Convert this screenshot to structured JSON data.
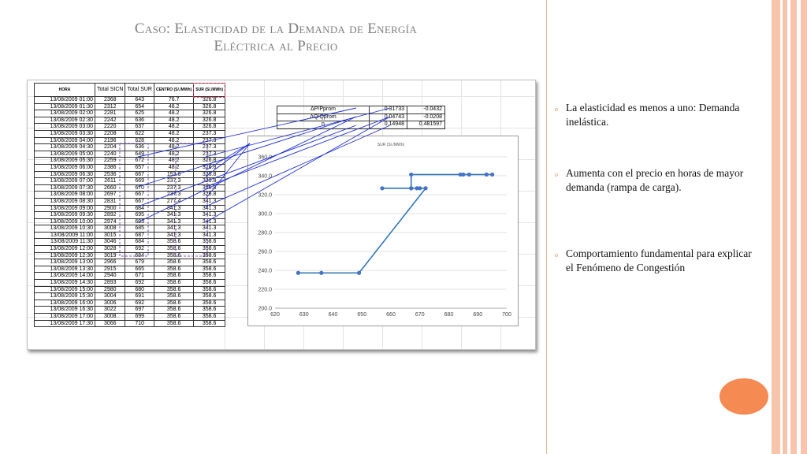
{
  "slide": {
    "title_line1": "Caso: Elasticidad de la Demanda de Energía",
    "title_line2": "Eléctrica al Precio",
    "bullets": [
      "La elasticidad es menos a uno: Demanda inelástica.",
      "Aumenta con el precio en horas de mayor demanda (rampa de carga).",
      "Comportamiento fundamental para explicar el Fenómeno de Congestión"
    ],
    "colors": {
      "accent_orange": "#f58a52",
      "stripe_peach": "#f6c4ab",
      "title_gray": "#7f7f7f",
      "series_blue": "#2e75b6",
      "arrow_blue": "#1f2fd0",
      "box_red": "#e0445a"
    }
  },
  "table": {
    "headers": [
      "HORA",
      "Total SICN",
      "Total SUR",
      "CENTRO (S/./MWh)",
      "SUR (S/./MWh)"
    ],
    "rows": [
      [
        "13/08/2009 01:00",
        "2368",
        "643",
        "76.7",
        "326.8"
      ],
      [
        "13/08/2009 01:30",
        "2312",
        "654",
        "48.2",
        "326.8"
      ],
      [
        "13/08/2009 02:00",
        "2281",
        "625",
        "48.2",
        "326.8"
      ],
      [
        "13/08/2009 02:30",
        "2242",
        "636",
        "48.2",
        "326.8"
      ],
      [
        "13/08/2009 03:00",
        "2220",
        "637",
        "48.2",
        "326.8"
      ],
      [
        "13/08/2009 03:30",
        "2208",
        "622",
        "48.2",
        "237.3"
      ],
      [
        "13/08/2009 04:00",
        "2196",
        "628",
        "48.2",
        "237.3"
      ],
      [
        "13/08/2009 04:30",
        "2204",
        "636",
        "48.2",
        "237.3"
      ],
      [
        "13/08/2009 05:00",
        "2240",
        "649",
        "48.2",
        "237.3"
      ],
      [
        "13/08/2009 05:30",
        "2259",
        "672",
        "48.2",
        "326.8"
      ],
      [
        "13/08/2009 06:00",
        "2386",
        "657",
        "48.2",
        "326.8"
      ],
      [
        "13/08/2009 06:30",
        "2536",
        "667",
        "153.6",
        "326.8"
      ],
      [
        "13/08/2009 07:00",
        "2611",
        "669",
        "237.3",
        "326.8"
      ],
      [
        "13/08/2009 07:30",
        "2660",
        "670",
        "237.3",
        "326.8"
      ],
      [
        "13/08/2009 08:00",
        "2697",
        "667",
        "237.3",
        "326.8"
      ],
      [
        "13/08/2009 08:30",
        "2831",
        "667",
        "277.4",
        "341.3"
      ],
      [
        "13/08/2009 09:00",
        "2900",
        "684",
        "341.3",
        "341.3"
      ],
      [
        "13/08/2009 09:30",
        "2892",
        "695",
        "341.3",
        "341.3"
      ],
      [
        "13/08/2009 10:00",
        "2974",
        "693",
        "341.3",
        "341.3"
      ],
      [
        "13/08/2009 10:30",
        "3008",
        "685",
        "341.3",
        "341.3"
      ],
      [
        "13/08/2009 11:00",
        "3015",
        "687",
        "341.3",
        "341.3"
      ],
      [
        "13/08/2009 11:30",
        "3046",
        "684",
        "358.6",
        "358.6"
      ],
      [
        "13/08/2009 12:00",
        "3028",
        "692",
        "358.6",
        "358.6"
      ],
      [
        "13/08/2009 12:30",
        "3019",
        "684",
        "358.6",
        "358.6"
      ],
      [
        "13/08/2009 13:00",
        "2966",
        "679",
        "358.6",
        "358.6"
      ],
      [
        "13/08/2009 13:30",
        "2915",
        "665",
        "358.6",
        "358.6"
      ],
      [
        "13/08/2009 14:00",
        "2940",
        "671",
        "358.6",
        "358.6"
      ],
      [
        "13/08/2009 14:30",
        "2893",
        "692",
        "358.6",
        "358.6"
      ],
      [
        "13/08/2009 15:00",
        "2980",
        "680",
        "358.6",
        "358.6"
      ],
      [
        "13/08/2009 15:30",
        "3004",
        "691",
        "358.6",
        "358.6"
      ],
      [
        "13/08/2009 16:00",
        "3006",
        "692",
        "358.6",
        "358.6"
      ],
      [
        "13/08/2009 16:30",
        "3022",
        "697",
        "358.6",
        "358.6"
      ],
      [
        "13/08/2009 17:00",
        "3008",
        "699",
        "358.6",
        "358.6"
      ],
      [
        "13/08/2009 17:30",
        "3066",
        "710",
        "358.6",
        "358.6"
      ]
    ]
  },
  "elasticity_table": {
    "rows": [
      {
        "label": "ΔP/Pprom",
        "v1": "0.31733",
        "v2": "-0.0432"
      },
      {
        "label": "ΔQ/Qprom",
        "v1": "0.04743",
        "v2": "-0.0208"
      },
      {
        "label": "η",
        "v1": "0.14948",
        "v2": "0.481597"
      }
    ]
  },
  "chart_data": {
    "type": "line",
    "title": "SUR (S/./MWh)",
    "xlim": [
      620,
      700
    ],
    "ylim": [
      200,
      360
    ],
    "xticks": [
      "620",
      "630",
      "640",
      "650",
      "660",
      "670",
      "680",
      "690",
      "700"
    ],
    "yticks": [
      "200.0",
      "220.0",
      "240.0",
      "260.0",
      "280.0",
      "300.0",
      "320.0",
      "340.0",
      "360.0"
    ],
    "grid": "horizontal",
    "series": [
      {
        "x": [
          628,
          636,
          649,
          672,
          657,
          667,
          669,
          670,
          667,
          667,
          684,
          695,
          693,
          685,
          687
        ],
        "y": [
          237.3,
          237.3,
          237.3,
          326.8,
          326.8,
          326.8,
          326.8,
          326.8,
          326.8,
          341.3,
          341.3,
          341.3,
          341.3,
          341.3,
          341.3
        ]
      }
    ]
  }
}
